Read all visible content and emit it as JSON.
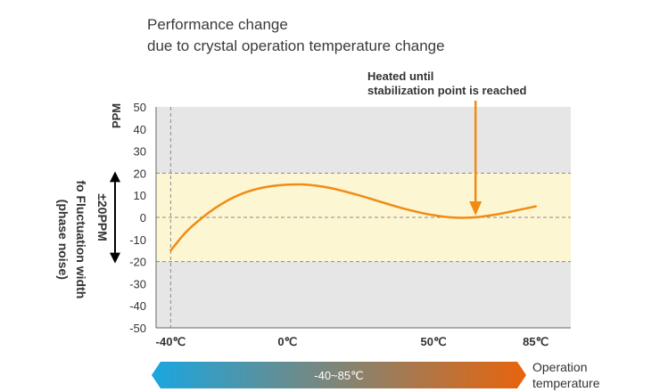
{
  "title": {
    "line1": "Performance change",
    "line2": "due to crystal operation temperature change"
  },
  "chart_data": {
    "type": "line",
    "ylabel": "PPM",
    "ylim": [
      -50,
      50
    ],
    "yticks": [
      "50",
      "40",
      "30",
      "20",
      "10",
      "0",
      "-10",
      "-20",
      "-30",
      "-40",
      "-50"
    ],
    "xticks": [
      {
        "label": "-40℃",
        "value": -40
      },
      {
        "label": "0℃",
        "value": 0
      },
      {
        "label": "50℃",
        "value": 50
      },
      {
        "label": "85℃",
        "value": 85
      }
    ],
    "xlim": [
      -45,
      97
    ],
    "band": {
      "from": -20,
      "to": 20,
      "color": "#fdf6d3"
    },
    "plot_background": "#e6e6e6",
    "series": [
      {
        "color": "#f08c14",
        "x": [
          -40,
          -35,
          -30,
          -25,
          -20,
          -15,
          -10,
          -5,
          0,
          5,
          10,
          15,
          20,
          25,
          30,
          35,
          40,
          45,
          50,
          55,
          60,
          65,
          70,
          75,
          80,
          85
        ],
        "y": [
          -15,
          -7,
          -1,
          4,
          8,
          11,
          13,
          14.2,
          14.8,
          14.9,
          14.3,
          13.2,
          11.6,
          9.8,
          7.8,
          5.8,
          3.9,
          2.3,
          1.0,
          0.1,
          -0.2,
          0.1,
          1.0,
          2.2,
          3.6,
          5.0
        ]
      }
    ],
    "annotations": {
      "stabilization": {
        "line1": "Heated until",
        "line2": "stabilization point is reached",
        "x": 65,
        "y": 0
      },
      "fluctuation": {
        "line1": "fo Fluctuation width",
        "line2": "(phase noise)",
        "range_label": "±20PPM"
      }
    },
    "range_bar": {
      "label": "-40~85℃",
      "start_color": "#1aa6e0",
      "end_color": "#e8640c"
    },
    "operation_label": {
      "line1": "Operation",
      "line2": "temperature"
    }
  }
}
